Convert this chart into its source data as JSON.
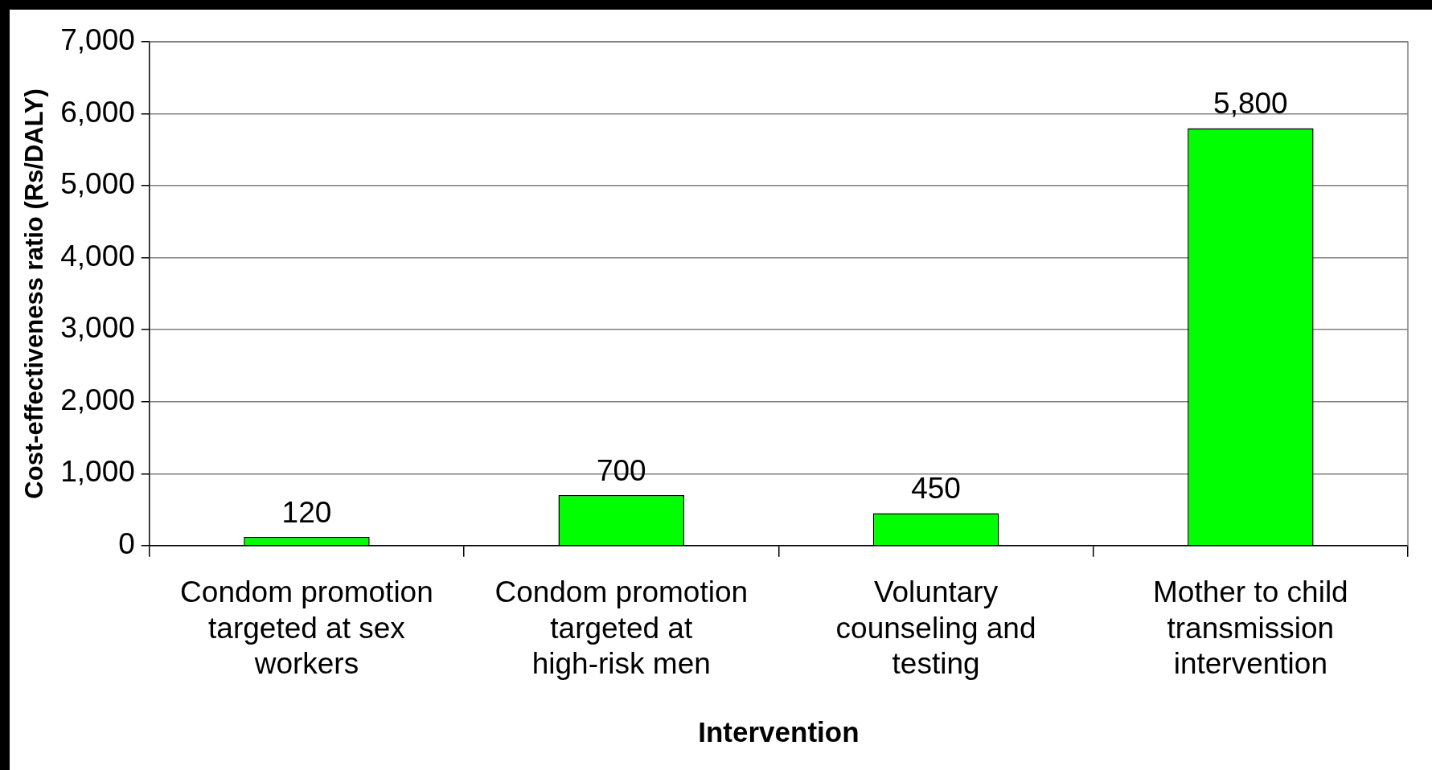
{
  "chart_data": {
    "type": "bar",
    "xlabel": "Intervention",
    "ylabel": "Cost-effectiveness ratio (Rs/DALY)",
    "categories": [
      "Condom promotion targeted at sex workers",
      "Condom promotion targeted at high-risk men",
      "Voluntary counseling and testing",
      "Mother to child transmission intervention"
    ],
    "values": [
      120,
      700,
      450,
      5800
    ],
    "color": "#00ff00",
    "ylim": [
      0,
      7000
    ],
    "yticks": [
      {
        "value": 0,
        "label": "0"
      },
      {
        "value": 1000,
        "label": "1,000"
      },
      {
        "value": 2000,
        "label": "2,000"
      },
      {
        "value": 3000,
        "label": "3,000"
      },
      {
        "value": 4000,
        "label": "4,000"
      },
      {
        "value": 5000,
        "label": "5,000"
      },
      {
        "value": 6000,
        "label": "6,000"
      },
      {
        "value": 7000,
        "label": "7,000"
      }
    ],
    "value_labels": [
      "120",
      "700",
      "450",
      "5,800"
    ],
    "grid": "y",
    "legend": false
  }
}
